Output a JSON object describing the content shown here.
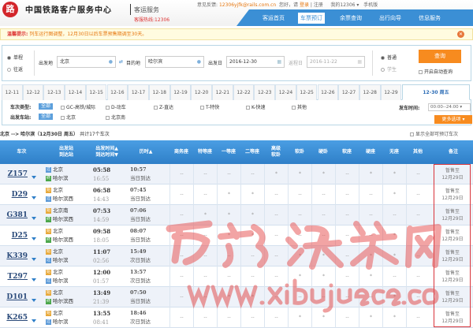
{
  "header": {
    "logo": "路",
    "brand": "中国铁路客户服务中心",
    "service": "客运服务",
    "hotline": "客服热线:12306",
    "feedback_label": "意见反馈:",
    "feedback_email": "12306yjfk@rails.com.cn",
    "greeting": "您好，请",
    "login": "登录",
    "register": "注册",
    "my12306": "我的12306 ▾",
    "mobile": "手机版"
  },
  "nav": [
    "客运首页",
    "车票预订",
    "余票查询",
    "出行向导",
    "信息服务"
  ],
  "nav_active": 1,
  "notice": {
    "label": "温馨提示:",
    "text": "列车运行图调整，12月30日以后车票预售期调至30天。"
  },
  "form": {
    "one_way": "单程",
    "round_trip": "往返",
    "from_label": "出发地",
    "from": "北京",
    "to_label": "目的地",
    "to": "哈尔滨",
    "date_label": "出发日",
    "date": "2016-12-30",
    "return_label": "返程日",
    "return_date": "2016-11-22",
    "normal": "普通",
    "student": "学生",
    "query": "查询",
    "auto_query": "开启自动查询"
  },
  "dates": [
    "12-11",
    "12-12",
    "12-13",
    "12-14",
    "12-15",
    "12-16",
    "12-17",
    "12-18",
    "12-19",
    "12-20",
    "12-21",
    "12-22",
    "12-23",
    "12-24",
    "12-25",
    "12-26",
    "12-27",
    "12-28",
    "12-29"
  ],
  "active_date": "12-30 周五",
  "filters": {
    "type_label": "车次类型:",
    "all": "全部",
    "types": [
      "GC-高铁/城际",
      "D-动车",
      "Z-直达",
      "T-特快",
      "K-快速",
      "其他"
    ],
    "station_label": "出发车站:",
    "stations": [
      "北京",
      "北京南"
    ],
    "time_label": "发车时间:",
    "time_value": "00:00--24:00 ▾",
    "more": "更多选项 ▾"
  },
  "route": {
    "text": "北京 --> 哈尔滨（12月30日 周五）",
    "count": "共计17个车次",
    "show_all": "显示全部可预订车次"
  },
  "columns": [
    "车次",
    "出发站\n到达站",
    "出发时间▲\n到达时间▼",
    "历时▲",
    "商务座",
    "特等座",
    "一等座",
    "二等座",
    "高级\n软卧",
    "软卧",
    "硬卧",
    "软座",
    "硬座",
    "无座",
    "其他",
    "备注"
  ],
  "badge_colors": {
    "始": "#e8a93a",
    "过": "#5c9ad8",
    "终": "#4aa64a"
  },
  "trains": [
    {
      "no": "Z157",
      "from": "北京",
      "from_tag": "过",
      "to": "哈尔滨",
      "to_tag": "终",
      "dep": "05:58",
      "arr": "16:55",
      "dur": "10:57",
      "arrive_day": "当日到达",
      "seats": [
        "--",
        "--",
        "--",
        "--",
        "*",
        "*",
        "*",
        "--",
        "*",
        "*",
        "--"
      ],
      "note": "暂售至\n12月29日"
    },
    {
      "no": "D29",
      "from": "北京",
      "from_tag": "始",
      "to": "哈尔滨西",
      "to_tag": "过",
      "dep": "06:58",
      "arr": "14:43",
      "dur": "07:45",
      "arrive_day": "当日到达",
      "seats": [
        "--",
        "--",
        "*",
        "*",
        "--",
        "--",
        "--",
        "--",
        "--",
        "*",
        "--"
      ],
      "note": "暂售至\n12月29日"
    },
    {
      "no": "G381",
      "from": "北京南",
      "from_tag": "始",
      "to": "哈尔滨西",
      "to_tag": "终",
      "dep": "07:53",
      "arr": "14:59",
      "dur": "07:06",
      "arrive_day": "当日到达",
      "seats": [
        "--",
        "*",
        "*",
        "*",
        "--",
        "--",
        "--",
        "--",
        "--",
        "--",
        "--"
      ],
      "note": "暂售至\n12月29日"
    },
    {
      "no": "D25",
      "from": "北京",
      "from_tag": "始",
      "to": "哈尔滨西",
      "to_tag": "终",
      "dep": "09:58",
      "arr": "18:05",
      "dur": "08:07",
      "arrive_day": "当日到达",
      "seats": [
        "--",
        "--",
        "*",
        "*",
        "--",
        "--",
        "--",
        "--",
        "--",
        "*",
        "--"
      ],
      "note": "暂售至\n12月29日"
    },
    {
      "no": "K339",
      "from": "北京",
      "from_tag": "始",
      "to": "哈尔滨",
      "to_tag": "过",
      "dep": "11:07",
      "arr": "02:56",
      "dur": "15:49",
      "arrive_day": "次日到达",
      "seats": [
        "--",
        "--",
        "--",
        "--",
        "--",
        "*",
        "*",
        "--",
        "*",
        "*",
        "--"
      ],
      "note": "暂售至\n12月29日"
    },
    {
      "no": "T297",
      "from": "北京",
      "from_tag": "始",
      "to": "哈尔滨",
      "to_tag": "过",
      "dep": "12:00",
      "arr": "01:57",
      "dur": "13:57",
      "arrive_day": "次日到达",
      "seats": [
        "--",
        "--",
        "--",
        "--",
        "--",
        "*",
        "*",
        "--",
        "*",
        "--",
        "--"
      ],
      "note": "暂售至\n12月29日"
    },
    {
      "no": "D101",
      "from": "北京",
      "from_tag": "始",
      "to": "哈尔滨西",
      "to_tag": "终",
      "dep": "13:49",
      "arr": "21:39",
      "dur": "07:50",
      "arrive_day": "当日到达",
      "seats": [
        "--",
        "--",
        "*",
        "*",
        "--",
        "--",
        "--",
        "--",
        "--",
        "*",
        "--"
      ],
      "note": "暂售至\n12月29日"
    },
    {
      "no": "K265",
      "from": "北京",
      "from_tag": "始",
      "to": "哈尔滨",
      "to_tag": "过",
      "dep": "13:55",
      "arr": "08:41",
      "dur": "18:46",
      "arrive_day": "次日到达",
      "seats": [
        "--",
        "--",
        "--",
        "--",
        "--",
        "*",
        "*",
        "--",
        "*",
        "*",
        "--"
      ],
      "note": "暂售至\n12月29日"
    }
  ],
  "watermark": {
    "name": "西部决策网",
    "url": "www.xibujuece.com"
  }
}
